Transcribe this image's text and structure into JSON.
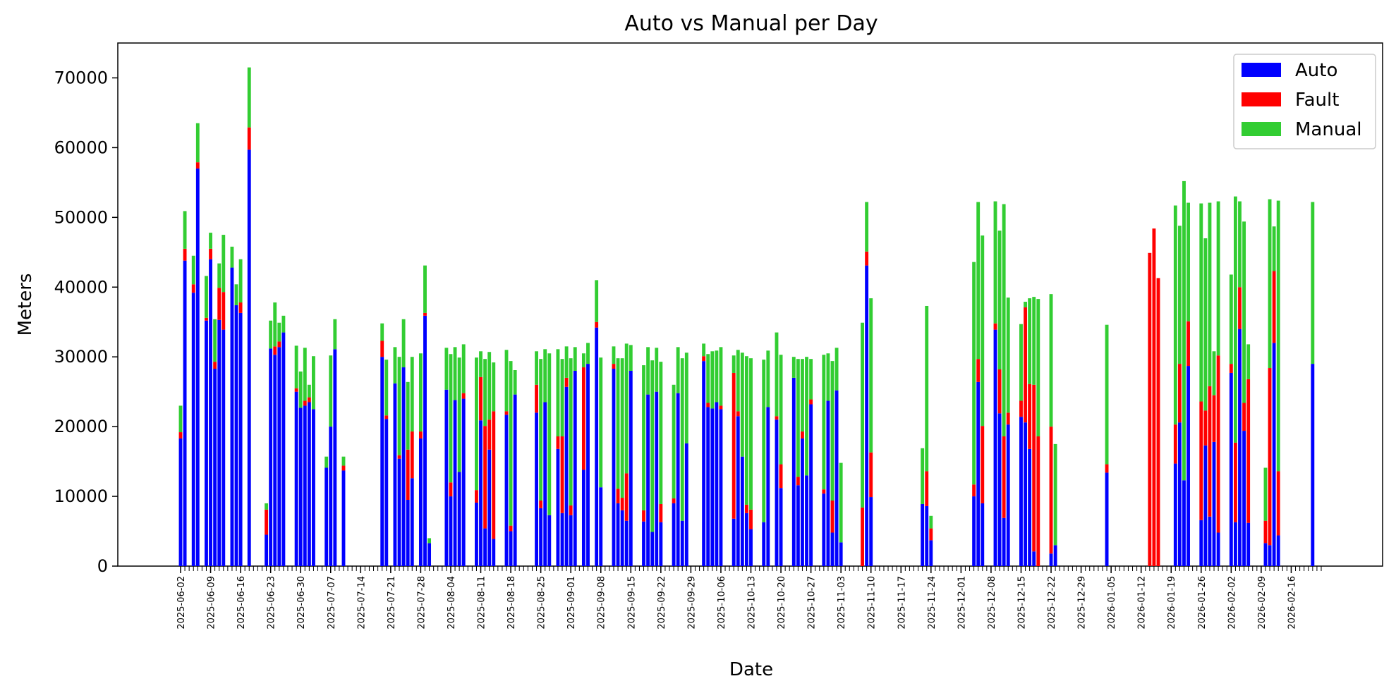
{
  "chart_data": {
    "type": "bar",
    "stacked": true,
    "title": "Auto vs Manual per Day",
    "xlabel": "Date",
    "ylabel": "Meters",
    "ylim": [
      0,
      75000
    ],
    "yticks": [
      0,
      10000,
      20000,
      30000,
      40000,
      50000,
      60000,
      70000
    ],
    "x_start": "2025-06-02",
    "x_end": "2026-02-23",
    "xtick_labels": [
      "2025-06-02",
      "2025-06-09",
      "2025-06-16",
      "2025-06-23",
      "2025-06-30",
      "2025-07-07",
      "2025-07-14",
      "2025-07-21",
      "2025-07-28",
      "2025-08-04",
      "2025-08-11",
      "2025-08-18",
      "2025-08-25",
      "2025-09-01",
      "2025-09-08",
      "2025-09-15",
      "2025-09-22",
      "2025-09-29",
      "2025-10-06",
      "2025-10-13",
      "2025-10-20",
      "2025-10-27",
      "2025-11-03",
      "2025-11-10",
      "2025-11-17",
      "2025-11-24",
      "2025-12-01",
      "2025-12-08",
      "2025-12-15",
      "2025-12-22",
      "2025-12-29",
      "2026-01-05",
      "2026-01-12",
      "2026-01-19",
      "2026-01-26",
      "2026-02-02",
      "2026-02-09",
      "2026-02-16"
    ],
    "grid": false,
    "legend_position": "top-right",
    "colors": {
      "Auto": "#0000ff",
      "Fault": "#ff0000",
      "Manual": "#32cd32"
    },
    "series_order": [
      "Auto",
      "Fault",
      "Manual"
    ],
    "legend": [
      "Auto",
      "Fault",
      "Manual"
    ],
    "days": [
      {
        "date": "2025-06-02",
        "auto": 18300,
        "fault": 900,
        "manual": 3800
      },
      {
        "date": "2025-06-03",
        "auto": 43800,
        "fault": 1700,
        "manual": 5400
      },
      {
        "date": "2025-06-05",
        "auto": 39200,
        "fault": 1200,
        "manual": 4100
      },
      {
        "date": "2025-06-06",
        "auto": 57000,
        "fault": 900,
        "manual": 5600
      },
      {
        "date": "2025-06-08",
        "auto": 35200,
        "fault": 400,
        "manual": 6000
      },
      {
        "date": "2025-06-09",
        "auto": 44000,
        "fault": 1500,
        "manual": 2300
      },
      {
        "date": "2025-06-10",
        "auto": 28300,
        "fault": 1000,
        "manual": 6100
      },
      {
        "date": "2025-06-11",
        "auto": 35300,
        "fault": 4600,
        "manual": 3500
      },
      {
        "date": "2025-06-12",
        "auto": 33900,
        "fault": 5400,
        "manual": 8200
      },
      {
        "date": "2025-06-14",
        "auto": 42800,
        "fault": 0,
        "manual": 3000
      },
      {
        "date": "2025-06-15",
        "auto": 37400,
        "fault": 0,
        "manual": 3000
      },
      {
        "date": "2025-06-16",
        "auto": 36300,
        "fault": 1500,
        "manual": 6200
      },
      {
        "date": "2025-06-18",
        "auto": 59700,
        "fault": 3200,
        "manual": 8600
      },
      {
        "date": "2025-06-22",
        "auto": 4500,
        "fault": 3600,
        "manual": 900
      },
      {
        "date": "2025-06-23",
        "auto": 31200,
        "fault": 0,
        "manual": 4000
      },
      {
        "date": "2025-06-24",
        "auto": 30300,
        "fault": 1200,
        "manual": 6300
      },
      {
        "date": "2025-06-25",
        "auto": 31400,
        "fault": 800,
        "manual": 2700
      },
      {
        "date": "2025-06-26",
        "auto": 33500,
        "fault": 0,
        "manual": 2400
      },
      {
        "date": "2025-06-29",
        "auto": 25000,
        "fault": 500,
        "manual": 6100
      },
      {
        "date": "2025-06-30",
        "auto": 22700,
        "fault": 0,
        "manual": 5200
      },
      {
        "date": "2025-07-01",
        "auto": 23000,
        "fault": 700,
        "manual": 7600
      },
      {
        "date": "2025-07-02",
        "auto": 23500,
        "fault": 700,
        "manual": 1800
      },
      {
        "date": "2025-07-03",
        "auto": 22500,
        "fault": 0,
        "manual": 7600
      },
      {
        "date": "2025-07-06",
        "auto": 14100,
        "fault": 0,
        "manual": 1600
      },
      {
        "date": "2025-07-07",
        "auto": 20000,
        "fault": 0,
        "manual": 10200
      },
      {
        "date": "2025-07-08",
        "auto": 31100,
        "fault": 0,
        "manual": 4300
      },
      {
        "date": "2025-07-10",
        "auto": 13700,
        "fault": 700,
        "manual": 1300
      },
      {
        "date": "2025-07-19",
        "auto": 30000,
        "fault": 2300,
        "manual": 2500
      },
      {
        "date": "2025-07-20",
        "auto": 21100,
        "fault": 500,
        "manual": 8000
      },
      {
        "date": "2025-07-22",
        "auto": 26200,
        "fault": 0,
        "manual": 5200
      },
      {
        "date": "2025-07-23",
        "auto": 15400,
        "fault": 500,
        "manual": 14100
      },
      {
        "date": "2025-07-24",
        "auto": 28500,
        "fault": 0,
        "manual": 6900
      },
      {
        "date": "2025-07-25",
        "auto": 9500,
        "fault": 7200,
        "manual": 9700
      },
      {
        "date": "2025-07-26",
        "auto": 12600,
        "fault": 6700,
        "manual": 10700
      },
      {
        "date": "2025-07-28",
        "auto": 18300,
        "fault": 1000,
        "manual": 11200
      },
      {
        "date": "2025-07-29",
        "auto": 35900,
        "fault": 400,
        "manual": 6800
      },
      {
        "date": "2025-07-30",
        "auto": 3300,
        "fault": 0,
        "manual": 700
      },
      {
        "date": "2025-08-03",
        "auto": 25300,
        "fault": 0,
        "manual": 6000
      },
      {
        "date": "2025-08-04",
        "auto": 10000,
        "fault": 2000,
        "manual": 18400
      },
      {
        "date": "2025-08-05",
        "auto": 23800,
        "fault": 0,
        "manual": 7600
      },
      {
        "date": "2025-08-06",
        "auto": 13500,
        "fault": 0,
        "manual": 16400
      },
      {
        "date": "2025-08-07",
        "auto": 24000,
        "fault": 800,
        "manual": 7000
      },
      {
        "date": "2025-08-10",
        "auto": 9100,
        "fault": 1800,
        "manual": 19000
      },
      {
        "date": "2025-08-11",
        "auto": 20900,
        "fault": 6200,
        "manual": 3700
      },
      {
        "date": "2025-08-12",
        "auto": 5400,
        "fault": 14700,
        "manual": 9600
      },
      {
        "date": "2025-08-13",
        "auto": 16700,
        "fault": 4300,
        "manual": 9700
      },
      {
        "date": "2025-08-14",
        "auto": 3900,
        "fault": 18300,
        "manual": 7000
      },
      {
        "date": "2025-08-17",
        "auto": 21700,
        "fault": 500,
        "manual": 8800
      },
      {
        "date": "2025-08-18",
        "auto": 5000,
        "fault": 800,
        "manual": 23600
      },
      {
        "date": "2025-08-19",
        "auto": 24600,
        "fault": 0,
        "manual": 3500
      },
      {
        "date": "2025-08-24",
        "auto": 22000,
        "fault": 4000,
        "manual": 4800
      },
      {
        "date": "2025-08-25",
        "auto": 8300,
        "fault": 1100,
        "manual": 20300
      },
      {
        "date": "2025-08-26",
        "auto": 23500,
        "fault": 0,
        "manual": 7600
      },
      {
        "date": "2025-08-27",
        "auto": 7300,
        "fault": 0,
        "manual": 23200
      },
      {
        "date": "2025-08-29",
        "auto": 16800,
        "fault": 1800,
        "manual": 12500
      },
      {
        "date": "2025-08-30",
        "auto": 7600,
        "fault": 11000,
        "manual": 11100
      },
      {
        "date": "2025-08-31",
        "auto": 25700,
        "fault": 1300,
        "manual": 4500
      },
      {
        "date": "2025-09-01",
        "auto": 7300,
        "fault": 1400,
        "manual": 21100
      },
      {
        "date": "2025-09-02",
        "auto": 28000,
        "fault": 0,
        "manual": 3400
      },
      {
        "date": "2025-09-04",
        "auto": 13800,
        "fault": 14700,
        "manual": 2000
      },
      {
        "date": "2025-09-05",
        "auto": 29000,
        "fault": 0,
        "manual": 3000
      },
      {
        "date": "2025-09-07",
        "auto": 34200,
        "fault": 800,
        "manual": 6000
      },
      {
        "date": "2025-09-08",
        "auto": 11300,
        "fault": 0,
        "manual": 18600
      },
      {
        "date": "2025-09-11",
        "auto": 28300,
        "fault": 700,
        "manual": 2500
      },
      {
        "date": "2025-09-12",
        "auto": 9000,
        "fault": 2100,
        "manual": 18700
      },
      {
        "date": "2025-09-13",
        "auto": 8000,
        "fault": 1800,
        "manual": 20000
      },
      {
        "date": "2025-09-14",
        "auto": 6500,
        "fault": 6800,
        "manual": 18600
      },
      {
        "date": "2025-09-15",
        "auto": 28000,
        "fault": 0,
        "manual": 3700
      },
      {
        "date": "2025-09-18",
        "auto": 6400,
        "fault": 1600,
        "manual": 20800
      },
      {
        "date": "2025-09-19",
        "auto": 24600,
        "fault": 0,
        "manual": 6800
      },
      {
        "date": "2025-09-20",
        "auto": 4900,
        "fault": 0,
        "manual": 24600
      },
      {
        "date": "2025-09-21",
        "auto": 25000,
        "fault": 0,
        "manual": 6300
      },
      {
        "date": "2025-09-22",
        "auto": 6300,
        "fault": 2600,
        "manual": 20400
      },
      {
        "date": "2025-09-25",
        "auto": 9000,
        "fault": 700,
        "manual": 16300
      },
      {
        "date": "2025-09-26",
        "auto": 24800,
        "fault": 0,
        "manual": 6600
      },
      {
        "date": "2025-09-27",
        "auto": 6500,
        "fault": 0,
        "manual": 23300
      },
      {
        "date": "2025-09-28",
        "auto": 17600,
        "fault": 0,
        "manual": 13000
      },
      {
        "date": "2025-10-02",
        "auto": 29400,
        "fault": 700,
        "manual": 1800
      },
      {
        "date": "2025-10-03",
        "auto": 22800,
        "fault": 600,
        "manual": 7000
      },
      {
        "date": "2025-10-04",
        "auto": 22600,
        "fault": 0,
        "manual": 8200
      },
      {
        "date": "2025-10-05",
        "auto": 23500,
        "fault": 0,
        "manual": 7400
      },
      {
        "date": "2025-10-06",
        "auto": 22500,
        "fault": 500,
        "manual": 8400
      },
      {
        "date": "2025-10-09",
        "auto": 6800,
        "fault": 20900,
        "manual": 2500
      },
      {
        "date": "2025-10-10",
        "auto": 21500,
        "fault": 700,
        "manual": 8800
      },
      {
        "date": "2025-10-11",
        "auto": 15700,
        "fault": 0,
        "manual": 14900
      },
      {
        "date": "2025-10-12",
        "auto": 7600,
        "fault": 1200,
        "manual": 21300
      },
      {
        "date": "2025-10-13",
        "auto": 5300,
        "fault": 2800,
        "manual": 21700
      },
      {
        "date": "2025-10-16",
        "auto": 6300,
        "fault": 0,
        "manual": 23300
      },
      {
        "date": "2025-10-17",
        "auto": 22800,
        "fault": 0,
        "manual": 8100
      },
      {
        "date": "2025-10-19",
        "auto": 21000,
        "fault": 500,
        "manual": 12000
      },
      {
        "date": "2025-10-20",
        "auto": 11200,
        "fault": 3400,
        "manual": 15700
      },
      {
        "date": "2025-10-23",
        "auto": 27000,
        "fault": 0,
        "manual": 3000
      },
      {
        "date": "2025-10-24",
        "auto": 11600,
        "fault": 1200,
        "manual": 16900
      },
      {
        "date": "2025-10-25",
        "auto": 18300,
        "fault": 1000,
        "manual": 10400
      },
      {
        "date": "2025-10-26",
        "auto": 13000,
        "fault": 0,
        "manual": 17000
      },
      {
        "date": "2025-10-27",
        "auto": 23200,
        "fault": 700,
        "manual": 5800
      },
      {
        "date": "2025-10-30",
        "auto": 10400,
        "fault": 600,
        "manual": 19300
      },
      {
        "date": "2025-10-31",
        "auto": 23700,
        "fault": 0,
        "manual": 6800
      },
      {
        "date": "2025-11-01",
        "auto": 4800,
        "fault": 4600,
        "manual": 20000
      },
      {
        "date": "2025-11-02",
        "auto": 25200,
        "fault": 0,
        "manual": 6100
      },
      {
        "date": "2025-11-03",
        "auto": 3400,
        "fault": 0,
        "manual": 11400
      },
      {
        "date": "2025-11-08",
        "auto": 0,
        "fault": 8400,
        "manual": 26500
      },
      {
        "date": "2025-11-09",
        "auto": 43100,
        "fault": 2000,
        "manual": 7100
      },
      {
        "date": "2025-11-10",
        "auto": 9900,
        "fault": 6400,
        "manual": 22100
      },
      {
        "date": "2025-11-22",
        "auto": 8900,
        "fault": 0,
        "manual": 8000
      },
      {
        "date": "2025-11-23",
        "auto": 8600,
        "fault": 5000,
        "manual": 23700
      },
      {
        "date": "2025-11-24",
        "auto": 3700,
        "fault": 1700,
        "manual": 1800
      },
      {
        "date": "2025-12-04",
        "auto": 10000,
        "fault": 1700,
        "manual": 31900
      },
      {
        "date": "2025-12-05",
        "auto": 26400,
        "fault": 3300,
        "manual": 22500
      },
      {
        "date": "2025-12-06",
        "auto": 9000,
        "fault": 11100,
        "manual": 27300
      },
      {
        "date": "2025-12-09",
        "auto": 33900,
        "fault": 900,
        "manual": 17500
      },
      {
        "date": "2025-12-10",
        "auto": 21900,
        "fault": 6300,
        "manual": 19900
      },
      {
        "date": "2025-12-11",
        "auto": 6900,
        "fault": 11700,
        "manual": 33300
      },
      {
        "date": "2025-12-12",
        "auto": 20300,
        "fault": 1700,
        "manual": 16500
      },
      {
        "date": "2025-12-15",
        "auto": 21400,
        "fault": 2300,
        "manual": 11000
      },
      {
        "date": "2025-12-16",
        "auto": 20600,
        "fault": 16500,
        "manual": 800
      },
      {
        "date": "2025-12-17",
        "auto": 16800,
        "fault": 9300,
        "manual": 12300
      },
      {
        "date": "2025-12-18",
        "auto": 2100,
        "fault": 23900,
        "manual": 12600
      },
      {
        "date": "2025-12-19",
        "auto": 0,
        "fault": 18600,
        "manual": 19700
      },
      {
        "date": "2025-12-22",
        "auto": 1800,
        "fault": 18200,
        "manual": 19000
      },
      {
        "date": "2025-12-23",
        "auto": 3000,
        "fault": 0,
        "manual": 14500
      },
      {
        "date": "2026-01-04",
        "auto": 13400,
        "fault": 1200,
        "manual": 20000
      },
      {
        "date": "2026-01-14",
        "auto": 0,
        "fault": 44900,
        "manual": 0
      },
      {
        "date": "2026-01-15",
        "auto": 0,
        "fault": 48400,
        "manual": 0
      },
      {
        "date": "2026-01-16",
        "auto": 0,
        "fault": 41300,
        "manual": 0
      },
      {
        "date": "2026-01-20",
        "auto": 14700,
        "fault": 5600,
        "manual": 31400
      },
      {
        "date": "2026-01-21",
        "auto": 20600,
        "fault": 8400,
        "manual": 19800
      },
      {
        "date": "2026-01-22",
        "auto": 12300,
        "fault": 0,
        "manual": 42900
      },
      {
        "date": "2026-01-23",
        "auto": 28700,
        "fault": 6400,
        "manual": 17000
      },
      {
        "date": "2026-01-26",
        "auto": 6600,
        "fault": 17000,
        "manual": 28400
      },
      {
        "date": "2026-01-27",
        "auto": 17300,
        "fault": 5000,
        "manual": 24700
      },
      {
        "date": "2026-01-28",
        "auto": 7100,
        "fault": 18700,
        "manual": 26300
      },
      {
        "date": "2026-01-29",
        "auto": 17800,
        "fault": 6700,
        "manual": 6300
      },
      {
        "date": "2026-01-30",
        "auto": 4800,
        "fault": 25400,
        "manual": 22100
      },
      {
        "date": "2026-02-02",
        "auto": 27700,
        "fault": 1300,
        "manual": 12800
      },
      {
        "date": "2026-02-03",
        "auto": 6300,
        "fault": 11400,
        "manual": 35300
      },
      {
        "date": "2026-02-04",
        "auto": 34000,
        "fault": 6000,
        "manual": 12300
      },
      {
        "date": "2026-02-05",
        "auto": 19400,
        "fault": 4000,
        "manual": 26000
      },
      {
        "date": "2026-02-06",
        "auto": 6200,
        "fault": 20600,
        "manual": 5000
      },
      {
        "date": "2026-02-10",
        "auto": 3300,
        "fault": 3200,
        "manual": 7600
      },
      {
        "date": "2026-02-11",
        "auto": 3000,
        "fault": 25400,
        "manual": 24200
      },
      {
        "date": "2026-02-12",
        "auto": 32000,
        "fault": 10300,
        "manual": 6400
      },
      {
        "date": "2026-02-13",
        "auto": 4400,
        "fault": 9200,
        "manual": 38800
      },
      {
        "date": "2026-02-21",
        "auto": 29000,
        "fault": 0,
        "manual": 23200
      }
    ]
  }
}
